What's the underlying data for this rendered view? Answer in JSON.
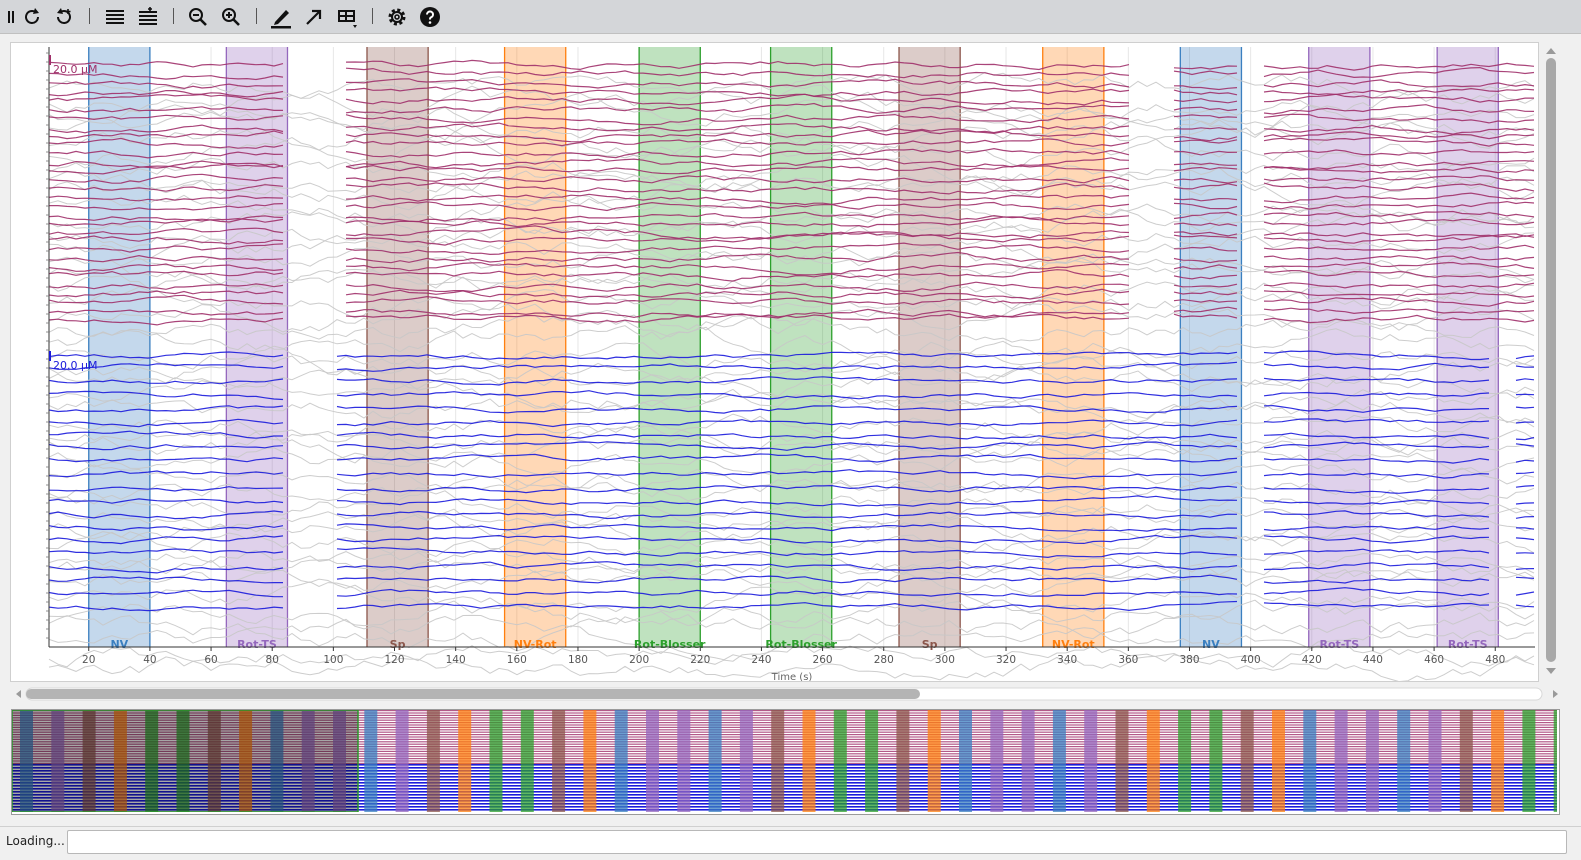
{
  "toolbar": {
    "buttons": [
      {
        "name": "pause-icon"
      },
      {
        "name": "undo-rotate-icon"
      },
      {
        "name": "redo-rotate-icon"
      },
      {
        "name": "compress-lines-icon"
      },
      {
        "name": "expand-lines-icon"
      },
      {
        "name": "zoom-out-icon"
      },
      {
        "name": "zoom-in-icon"
      },
      {
        "name": "draw-pen-icon"
      },
      {
        "name": "arrow-icon"
      },
      {
        "name": "layout-dropdown-icon"
      },
      {
        "name": "settings-gear-icon"
      },
      {
        "name": "help-icon"
      }
    ]
  },
  "chart_data": {
    "type": "line",
    "xlabel": "Time (s)",
    "xlim": [
      7,
      493
    ],
    "x_ticks": [
      20,
      40,
      60,
      80,
      100,
      120,
      140,
      160,
      180,
      200,
      220,
      240,
      260,
      280,
      300,
      320,
      340,
      360,
      380,
      400,
      420,
      440,
      460,
      480
    ],
    "grid": true,
    "scale_bars": [
      {
        "label": "20.0 µM",
        "color": "#a0306a"
      },
      {
        "label": "20.0 µM",
        "color": "#1a1adb"
      }
    ],
    "series": [
      {
        "color": "#a0306a",
        "count": 30
      },
      {
        "color": "#1a1adb",
        "count": 20
      },
      {
        "color": "#c8c8c8",
        "count": 44
      }
    ],
    "stimulus_bands": [
      {
        "label": "NV",
        "start": 20,
        "end": 40,
        "color": "#3a7fc0"
      },
      {
        "label": "Rot-TS",
        "start": 65,
        "end": 85,
        "color": "#9467bd"
      },
      {
        "label": "Sp",
        "start": 111,
        "end": 131,
        "color": "#8c564b"
      },
      {
        "label": "NV-Rot",
        "start": 156,
        "end": 176,
        "color": "#ff7f0e"
      },
      {
        "label": "Rot-Blosser",
        "start": 200,
        "end": 220,
        "color": "#2ca02c"
      },
      {
        "label": "Rot-Blosser",
        "start": 243,
        "end": 263,
        "color": "#2ca02c"
      },
      {
        "label": "Sp",
        "start": 285,
        "end": 305,
        "color": "#8c564b"
      },
      {
        "label": "NV-Rot",
        "start": 332,
        "end": 352,
        "color": "#ff7f0e"
      },
      {
        "label": "NV",
        "start": 377,
        "end": 397,
        "color": "#3a7fc0"
      },
      {
        "label": "Rot-TS",
        "start": 419,
        "end": 439,
        "color": "#9467bd"
      },
      {
        "label": "Rot-TS",
        "start": 461,
        "end": 481,
        "color": "#9467bd"
      }
    ]
  },
  "status": {
    "text": "Loading..."
  }
}
